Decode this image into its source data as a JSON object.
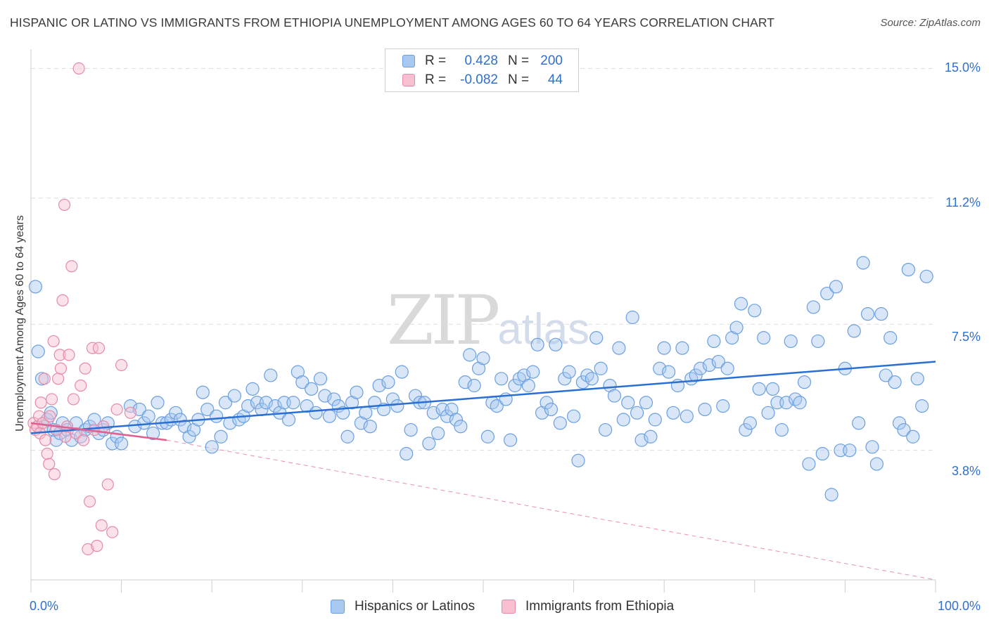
{
  "title": "HISPANIC OR LATINO VS IMMIGRANTS FROM ETHIOPIA UNEMPLOYMENT AMONG AGES 60 TO 64 YEARS CORRELATION CHART",
  "source": "Source: ZipAtlas.com",
  "watermark": {
    "part1": "ZIP",
    "part2": "atlas"
  },
  "legend": {
    "rows": [
      {
        "r_label": "R =",
        "r_value": "0.428",
        "n_label": "N =",
        "n_value": "200",
        "color": "#a8c8f0",
        "border": "#6a9fe0"
      },
      {
        "r_label": "R =",
        "r_value": "-0.082",
        "n_label": "N =",
        "n_value": "44",
        "color": "#f7bfd0",
        "border": "#e58aa8"
      }
    ]
  },
  "bottom_legend": [
    "Hispanics or Latinos",
    "Immigrants from Ethiopia"
  ],
  "colors": {
    "blue_fill": "#a8c8f0",
    "blue_stroke": "#6a9fe0",
    "blue_line": "#2a6fd4",
    "pink_fill": "#f7bfd0",
    "pink_stroke": "#e58aa8",
    "pink_line": "#e06090",
    "grid": "#dddddd",
    "axis_text": "#2f6fcf"
  },
  "chart_data": {
    "type": "scatter",
    "title": "HISPANIC OR LATINO VS IMMIGRANTS FROM ETHIOPIA UNEMPLOYMENT AMONG AGES 60 TO 64 YEARS CORRELATION CHART",
    "xlabel": "",
    "ylabel": "Unemployment Among Ages 60 to 64 years",
    "xlim": [
      0,
      100
    ],
    "ylim": [
      0,
      15.4
    ],
    "x_tick_labels": [
      "0.0%",
      "100.0%"
    ],
    "y_ticks": [
      3.8,
      7.5,
      11.2,
      15.0
    ],
    "y_tick_labels": [
      "3.8%",
      "7.5%",
      "11.2%",
      "15.0%"
    ],
    "grid": true,
    "legend_position": "top-center",
    "series": [
      {
        "name": "Hispanics or Latinos",
        "R": 0.428,
        "N": 200,
        "trend": {
          "x": [
            0,
            100
          ],
          "y": [
            4.3,
            6.4
          ]
        },
        "points": [
          [
            0.5,
            8.6
          ],
          [
            0.8,
            6.7
          ],
          [
            1.2,
            5.9
          ],
          [
            1.5,
            4.5
          ],
          [
            1.8,
            4.7
          ],
          [
            2.2,
            4.9
          ],
          [
            2.5,
            4.4
          ],
          [
            2.8,
            4.1
          ],
          [
            3.2,
            4.3
          ],
          [
            3.5,
            4.6
          ],
          [
            4.0,
            4.4
          ],
          [
            4.5,
            4.1
          ],
          [
            5.0,
            4.6
          ],
          [
            5.5,
            4.2
          ],
          [
            6.0,
            4.4
          ],
          [
            6.5,
            4.5
          ],
          [
            7.0,
            4.7
          ],
          [
            7.5,
            4.3
          ],
          [
            8.0,
            4.4
          ],
          [
            8.5,
            4.6
          ],
          [
            9.0,
            4.0
          ],
          [
            9.5,
            4.2
          ],
          [
            10.0,
            4.0
          ],
          [
            11.0,
            5.1
          ],
          [
            11.5,
            4.5
          ],
          [
            12.0,
            5.0
          ],
          [
            12.5,
            4.6
          ],
          [
            13.0,
            4.8
          ],
          [
            13.5,
            4.3
          ],
          [
            14.0,
            5.2
          ],
          [
            14.5,
            4.6
          ],
          [
            15.0,
            4.6
          ],
          [
            15.5,
            4.7
          ],
          [
            16.0,
            4.9
          ],
          [
            16.5,
            4.7
          ],
          [
            17.0,
            4.5
          ],
          [
            17.5,
            4.2
          ],
          [
            18.0,
            4.4
          ],
          [
            18.5,
            4.7
          ],
          [
            19.0,
            5.5
          ],
          [
            19.5,
            5.0
          ],
          [
            20.0,
            3.9
          ],
          [
            20.5,
            4.8
          ],
          [
            21.0,
            4.2
          ],
          [
            21.5,
            5.2
          ],
          [
            22.0,
            4.6
          ],
          [
            22.5,
            5.4
          ],
          [
            23.0,
            4.7
          ],
          [
            23.5,
            4.8
          ],
          [
            24.0,
            5.1
          ],
          [
            24.5,
            5.6
          ],
          [
            25.0,
            5.2
          ],
          [
            25.5,
            5.0
          ],
          [
            26.0,
            5.2
          ],
          [
            26.5,
            6.0
          ],
          [
            27.0,
            5.1
          ],
          [
            27.5,
            4.9
          ],
          [
            28.0,
            5.2
          ],
          [
            28.5,
            4.7
          ],
          [
            29.0,
            5.2
          ],
          [
            29.5,
            6.1
          ],
          [
            30.0,
            5.8
          ],
          [
            30.5,
            5.1
          ],
          [
            31.0,
            5.6
          ],
          [
            31.5,
            4.9
          ],
          [
            32.0,
            5.9
          ],
          [
            32.5,
            5.4
          ],
          [
            33.0,
            4.8
          ],
          [
            33.5,
            5.3
          ],
          [
            34.0,
            5.1
          ],
          [
            34.5,
            4.9
          ],
          [
            35.0,
            4.2
          ],
          [
            35.5,
            5.2
          ],
          [
            36.0,
            5.5
          ],
          [
            36.5,
            4.6
          ],
          [
            37.0,
            4.9
          ],
          [
            37.5,
            4.5
          ],
          [
            38.0,
            5.2
          ],
          [
            38.5,
            5.7
          ],
          [
            39.0,
            5.0
          ],
          [
            39.5,
            5.8
          ],
          [
            40.0,
            5.3
          ],
          [
            40.5,
            5.1
          ],
          [
            41.0,
            6.1
          ],
          [
            41.5,
            3.7
          ],
          [
            42.0,
            4.4
          ],
          [
            42.5,
            5.4
          ],
          [
            43.0,
            5.2
          ],
          [
            43.5,
            5.2
          ],
          [
            44.0,
            4.0
          ],
          [
            44.5,
            4.9
          ],
          [
            45.0,
            4.3
          ],
          [
            45.5,
            5.0
          ],
          [
            46.0,
            4.8
          ],
          [
            46.5,
            5.0
          ],
          [
            47.0,
            4.7
          ],
          [
            47.5,
            4.5
          ],
          [
            48.0,
            5.8
          ],
          [
            48.5,
            6.6
          ],
          [
            49.0,
            5.7
          ],
          [
            49.5,
            6.2
          ],
          [
            50.0,
            6.5
          ],
          [
            50.5,
            4.2
          ],
          [
            51.0,
            5.2
          ],
          [
            51.5,
            5.1
          ],
          [
            52.0,
            5.9
          ],
          [
            52.5,
            5.3
          ],
          [
            53.0,
            4.1
          ],
          [
            53.5,
            5.7
          ],
          [
            54.0,
            5.9
          ],
          [
            54.5,
            6.0
          ],
          [
            55.0,
            5.7
          ],
          [
            55.5,
            6.1
          ],
          [
            56.0,
            6.9
          ],
          [
            56.5,
            4.9
          ],
          [
            57.0,
            5.2
          ],
          [
            57.5,
            5.0
          ],
          [
            58.0,
            6.9
          ],
          [
            58.5,
            4.6
          ],
          [
            59.0,
            5.9
          ],
          [
            59.5,
            6.1
          ],
          [
            60.0,
            4.8
          ],
          [
            60.5,
            3.5
          ],
          [
            61.0,
            5.8
          ],
          [
            61.5,
            6.0
          ],
          [
            62.0,
            5.9
          ],
          [
            62.5,
            7.1
          ],
          [
            63.0,
            6.2
          ],
          [
            63.5,
            4.4
          ],
          [
            64.0,
            5.7
          ],
          [
            64.5,
            5.4
          ],
          [
            65.0,
            6.8
          ],
          [
            65.5,
            4.7
          ],
          [
            66.0,
            5.2
          ],
          [
            66.5,
            7.7
          ],
          [
            67.0,
            4.9
          ],
          [
            67.5,
            4.1
          ],
          [
            68.0,
            5.2
          ],
          [
            68.5,
            4.2
          ],
          [
            69.0,
            4.7
          ],
          [
            69.5,
            6.2
          ],
          [
            70.0,
            6.8
          ],
          [
            70.5,
            6.1
          ],
          [
            71.0,
            4.9
          ],
          [
            71.5,
            5.7
          ],
          [
            72.0,
            6.8
          ],
          [
            72.5,
            4.8
          ],
          [
            73.0,
            5.9
          ],
          [
            73.5,
            6.0
          ],
          [
            74.0,
            6.2
          ],
          [
            74.5,
            5.0
          ],
          [
            75.0,
            6.3
          ],
          [
            75.5,
            7.0
          ],
          [
            76.0,
            6.4
          ],
          [
            76.5,
            5.1
          ],
          [
            77.0,
            6.2
          ],
          [
            77.5,
            7.1
          ],
          [
            78.0,
            7.4
          ],
          [
            78.5,
            8.1
          ],
          [
            79.0,
            4.4
          ],
          [
            79.5,
            4.6
          ],
          [
            80.0,
            7.9
          ],
          [
            80.5,
            5.6
          ],
          [
            81.0,
            7.1
          ],
          [
            81.5,
            4.9
          ],
          [
            82.0,
            5.6
          ],
          [
            82.5,
            5.2
          ],
          [
            83.0,
            4.4
          ],
          [
            83.5,
            5.2
          ],
          [
            84.0,
            7.0
          ],
          [
            84.5,
            5.3
          ],
          [
            85.0,
            5.2
          ],
          [
            85.5,
            5.8
          ],
          [
            86.0,
            3.4
          ],
          [
            86.5,
            8.0
          ],
          [
            87.0,
            7.0
          ],
          [
            87.5,
            3.7
          ],
          [
            88.0,
            8.4
          ],
          [
            88.5,
            2.5
          ],
          [
            89.0,
            8.6
          ],
          [
            89.5,
            3.8
          ],
          [
            90.0,
            6.2
          ],
          [
            90.5,
            3.8
          ],
          [
            91.0,
            7.3
          ],
          [
            91.5,
            4.6
          ],
          [
            92.0,
            9.3
          ],
          [
            92.5,
            7.8
          ],
          [
            93.0,
            3.9
          ],
          [
            93.5,
            3.4
          ],
          [
            94.0,
            7.8
          ],
          [
            94.5,
            6.0
          ],
          [
            95.0,
            7.1
          ],
          [
            95.5,
            5.8
          ],
          [
            96.0,
            4.6
          ],
          [
            96.5,
            4.4
          ],
          [
            97.0,
            9.1
          ],
          [
            97.5,
            4.2
          ],
          [
            98.0,
            5.9
          ],
          [
            98.5,
            5.1
          ],
          [
            99.0,
            8.9
          ]
        ]
      },
      {
        "name": "Immigrants from Ethiopia",
        "R": -0.082,
        "N": 44,
        "trend": {
          "x": [
            0,
            15
          ],
          "y": [
            4.6,
            4.1
          ]
        },
        "trend_extended": {
          "x": [
            15,
            100
          ],
          "y": [
            4.1,
            0.0
          ]
        },
        "points": [
          [
            0.3,
            4.6
          ],
          [
            0.5,
            4.4
          ],
          [
            0.7,
            4.5
          ],
          [
            0.9,
            4.8
          ],
          [
            1.0,
            4.3
          ],
          [
            1.1,
            5.2
          ],
          [
            1.3,
            4.6
          ],
          [
            1.5,
            5.9
          ],
          [
            1.6,
            4.1
          ],
          [
            1.8,
            3.7
          ],
          [
            2.0,
            3.4
          ],
          [
            2.1,
            4.8
          ],
          [
            2.3,
            5.3
          ],
          [
            2.5,
            7.0
          ],
          [
            2.6,
            3.1
          ],
          [
            2.8,
            4.4
          ],
          [
            3.0,
            5.9
          ],
          [
            3.2,
            6.6
          ],
          [
            3.3,
            6.2
          ],
          [
            3.5,
            8.2
          ],
          [
            3.7,
            11.0
          ],
          [
            3.8,
            4.2
          ],
          [
            4.0,
            4.5
          ],
          [
            4.2,
            6.6
          ],
          [
            4.5,
            9.2
          ],
          [
            4.7,
            5.3
          ],
          [
            5.0,
            4.3
          ],
          [
            5.3,
            15.0
          ],
          [
            5.5,
            5.7
          ],
          [
            5.8,
            4.1
          ],
          [
            6.0,
            6.2
          ],
          [
            6.3,
            0.9
          ],
          [
            6.5,
            2.3
          ],
          [
            6.8,
            6.8
          ],
          [
            7.0,
            4.4
          ],
          [
            7.3,
            1.0
          ],
          [
            7.5,
            6.8
          ],
          [
            7.8,
            1.6
          ],
          [
            8.0,
            4.5
          ],
          [
            8.5,
            2.8
          ],
          [
            9.0,
            1.4
          ],
          [
            9.5,
            5.0
          ],
          [
            10.0,
            6.3
          ],
          [
            11.0,
            4.9
          ]
        ]
      }
    ]
  }
}
